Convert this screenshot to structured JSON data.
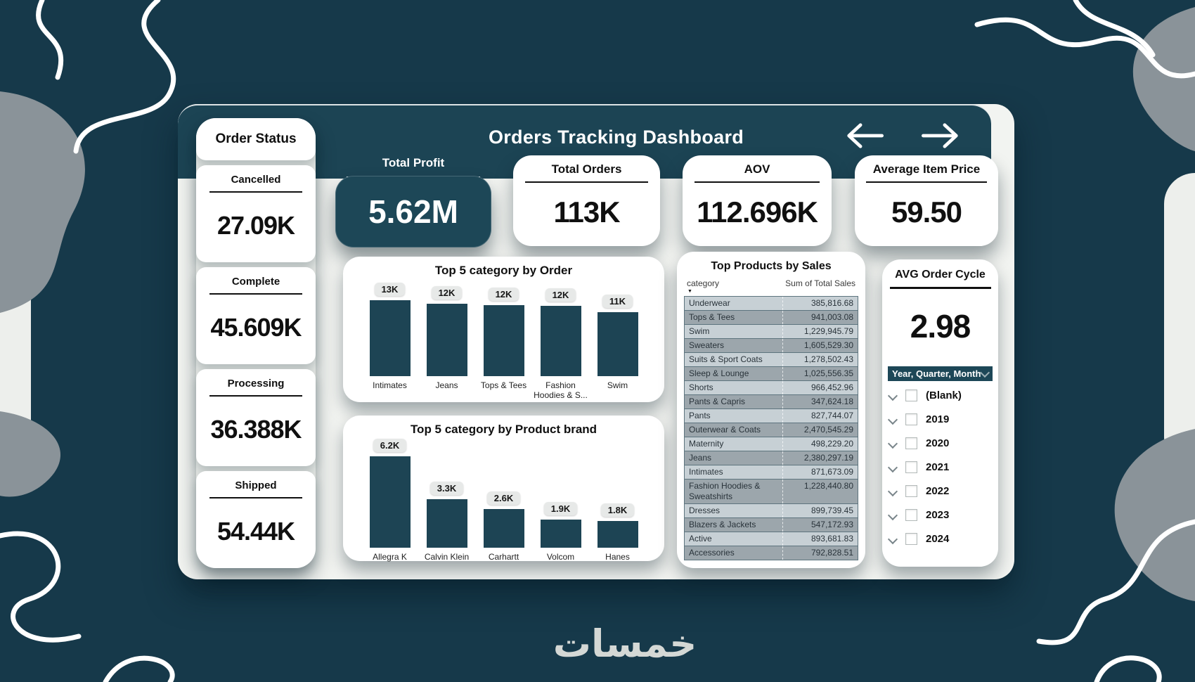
{
  "header": {
    "title": "Orders Tracking Dashboard",
    "nav": {
      "back_icon": "arrow-left-icon",
      "forward_icon": "arrow-right-icon"
    }
  },
  "order_status": {
    "title": "Order Status",
    "items": [
      {
        "label": "Cancelled",
        "value": "27.09K"
      },
      {
        "label": "Complete",
        "value": "45.609K"
      },
      {
        "label": "Processing",
        "value": "36.388K"
      },
      {
        "label": "Shipped",
        "value": "54.44K"
      }
    ]
  },
  "kpis": [
    {
      "label": "Total Profit",
      "value": "5.62M",
      "emphasis": true
    },
    {
      "label": "Total Orders",
      "value": "113K",
      "emphasis": false
    },
    {
      "label": "AOV",
      "value": "112.696K",
      "emphasis": false
    },
    {
      "label": "Average Item Price",
      "value": "59.50",
      "emphasis": false
    }
  ],
  "chart_data": [
    {
      "type": "bar",
      "title": "Top 5 category by Order",
      "categories": [
        "Intimates",
        "Jeans",
        "Tops & Tees",
        "Fashion Hoodies & S...",
        "Swim"
      ],
      "values": [
        13000,
        12400,
        12200,
        12000,
        11000
      ],
      "value_labels": [
        "13K",
        "12K",
        "12K",
        "12K",
        "11K"
      ],
      "xlabel": "",
      "ylabel": "",
      "ylim": [
        0,
        13000
      ],
      "grid": false,
      "legend": false,
      "bar_color": "#1d4454"
    },
    {
      "type": "bar",
      "title": "Top 5 category by Product brand",
      "categories": [
        "Allegra K",
        "Calvin Klein",
        "Carhartt",
        "Volcom",
        "Hanes"
      ],
      "values": [
        6200,
        3300,
        2600,
        1900,
        1800
      ],
      "value_labels": [
        "6.2K",
        "3.3K",
        "2.6K",
        "1.9K",
        "1.8K"
      ],
      "xlabel": "",
      "ylabel": "",
      "ylim": [
        0,
        6200
      ],
      "grid": false,
      "legend": false,
      "bar_color": "#1d4454"
    }
  ],
  "sales_table": {
    "title": "Top Products by Sales",
    "columns": [
      "category",
      "Sum of Total Sales"
    ],
    "sort_icon": "sort-descending-icon",
    "rows": [
      [
        "Underwear",
        "385,816.68"
      ],
      [
        "Tops & Tees",
        "941,003.08"
      ],
      [
        "Swim",
        "1,229,945.79"
      ],
      [
        "Sweaters",
        "1,605,529.30"
      ],
      [
        "Suits & Sport Coats",
        "1,278,502.43"
      ],
      [
        "Sleep & Lounge",
        "1,025,556.35"
      ],
      [
        "Shorts",
        "966,452.96"
      ],
      [
        "Pants & Capris",
        "347,624.18"
      ],
      [
        "Pants",
        "827,744.07"
      ],
      [
        "Outerwear & Coats",
        "2,470,545.29"
      ],
      [
        "Maternity",
        "498,229.20"
      ],
      [
        "Jeans",
        "2,380,297.19"
      ],
      [
        "Intimates",
        "871,673.09"
      ],
      [
        "Fashion Hoodies & Sweatshirts",
        "1,228,440.80"
      ],
      [
        "Dresses",
        "899,739.45"
      ],
      [
        "Blazers & Jackets",
        "547,172.93"
      ],
      [
        "Active",
        "893,681.83"
      ],
      [
        "Accessories",
        "792,828.51"
      ]
    ]
  },
  "avg_order_cycle": {
    "title": "AVG Order Cycle",
    "value": "2.98"
  },
  "date_slicer": {
    "header": "Year, Quarter, Month",
    "items": [
      "(Blank)",
      "2019",
      "2020",
      "2021",
      "2022",
      "2023",
      "2024"
    ],
    "checkbox_state": "unchecked"
  },
  "logo": {
    "text": "خمسات"
  },
  "colors": {
    "teal": "#1c4454",
    "teal_background": "#16394a",
    "panel": "#f2f4f1",
    "row_light": "#c7d0d5",
    "row_dark": "#9ca6ac",
    "pill": "#e7e9e8"
  }
}
